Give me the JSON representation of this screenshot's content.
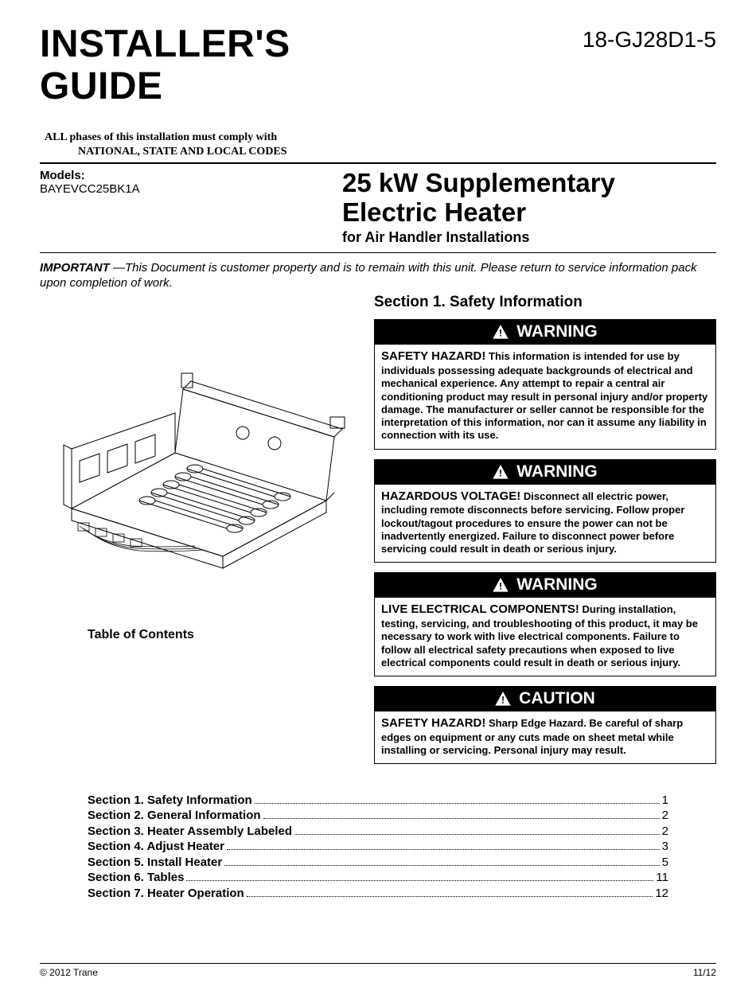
{
  "doc_number": "18-GJ28D1-5",
  "main_title_line1": "INSTALLER'S",
  "main_title_line2": "GUIDE",
  "compliance_line1": "ALL phases of this installation must comply with",
  "compliance_line2": "NATIONAL, STATE AND LOCAL CODES",
  "models_label": "Models:",
  "models_value": "BAYEVCC25BK1A",
  "product_title_line1": "25 kW Supplementary",
  "product_title_line2": "Electric Heater",
  "product_sub": "for Air Handler Installations",
  "important_lead": "IMPORTANT",
  "important_text": " —This Document is customer property and is to remain with this unit. Please return to service information pack upon completion of work.",
  "section1_heading": "Section 1. Safety Information",
  "warnings": [
    {
      "header": "WARNING",
      "lead": "SAFETY HAZARD!",
      "body": " This information is intended for use by individuals possessing adequate backgrounds of electrical and mechanical experience. Any attempt to repair a central air conditioning product may result in personal injury and/or property damage. The manufacturer or seller cannot be responsible for the interpretation of this information, nor can it assume any liability in connection with its use."
    },
    {
      "header": "WARNING",
      "lead": "HAZARDOUS VOLTAGE!",
      "body": " Disconnect all electric power, including remote disconnects before servicing. Follow proper lockout/tagout procedures to ensure the power can not be inadvertently energized. Failure to disconnect power before servicing could result in death or serious injury."
    },
    {
      "header": "WARNING",
      "lead": "LIVE ELECTRICAL COMPONENTS!",
      "body": " During installation, testing, servicing, and troubleshooting of this product, it may be necessary to work with live electrical components. Failure to follow all electrical safety precautions when exposed to live electrical components could result in death or serious injury."
    },
    {
      "header": "CAUTION",
      "lead": "SAFETY HAZARD!",
      "body": " Sharp Edge Hazard. Be careful of sharp edges on equipment or any cuts made on sheet metal while installing or servicing. Personal injury may result."
    }
  ],
  "toc_heading": "Table of Contents",
  "toc": [
    {
      "label": "Section 1. Safety Information",
      "page": "1"
    },
    {
      "label": "Section 2. General Information",
      "page": "2"
    },
    {
      "label": "Section 3. Heater Assembly Labeled",
      "page": "2"
    },
    {
      "label": "Section 4. Adjust Heater",
      "page": "3"
    },
    {
      "label": "Section 5. Install Heater",
      "page": "5"
    },
    {
      "label": "Section 6. Tables",
      "page": "11"
    },
    {
      "label": "Section 7. Heater Operation",
      "page": "12"
    }
  ],
  "copyright": "©  2012 Trane",
  "page_footer": "11/12",
  "colors": {
    "text": "#000000",
    "bg": "#ffffff",
    "alert_header_bg": "#000000",
    "alert_header_fg": "#ffffff"
  }
}
